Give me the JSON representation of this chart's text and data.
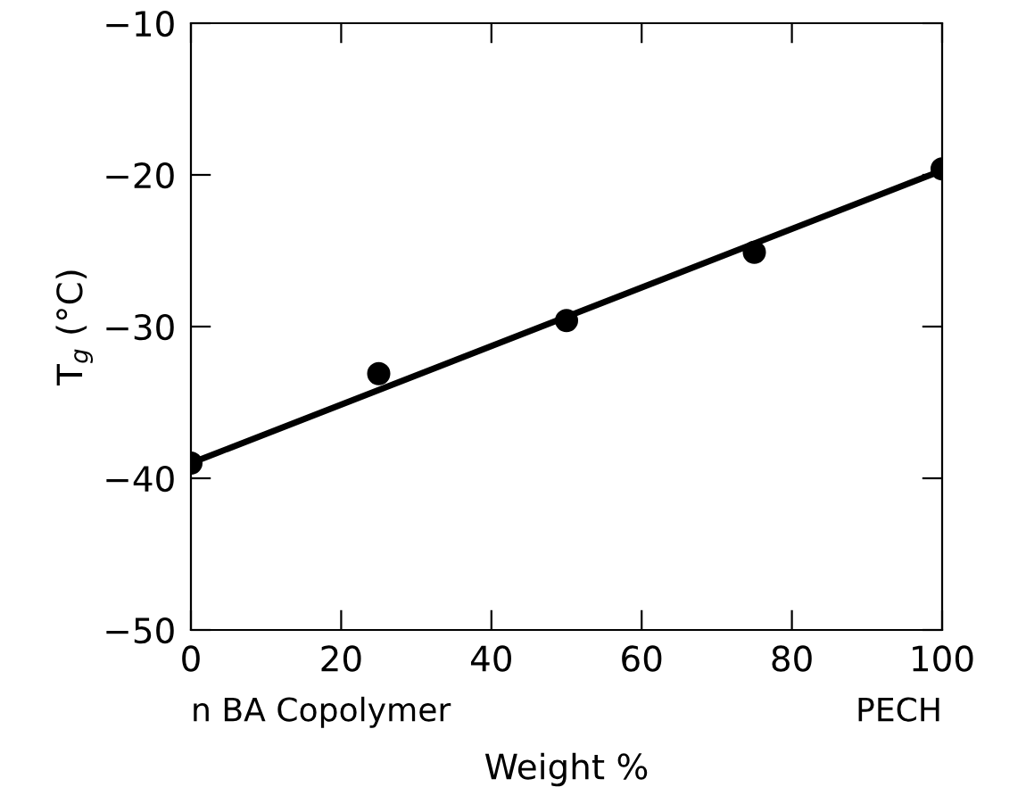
{
  "chart_data": {
    "type": "scatter",
    "xlabel": "Weight %",
    "ylabel": "T$_{g}$ (°C)",
    "x": [
      0,
      25,
      50,
      75,
      100
    ],
    "series": [
      {
        "color": "#000000",
        "marker": "circle",
        "values": [
          -39.0,
          -33.1,
          -29.6,
          -25.1,
          -19.6
        ]
      },
      {
        "type": "line",
        "color": "#000000",
        "x": [
          0,
          100
        ],
        "values": [
          -39.0,
          -19.7
        ],
        "line_style": "solid",
        "marker": "none"
      }
    ],
    "annotations": [
      "n BA Copolymer",
      "PECH"
    ],
    "xlim": [
      0,
      100
    ],
    "ylim": [
      -50,
      -10
    ],
    "xticks": [
      0,
      20,
      40,
      60,
      80,
      100
    ],
    "yticks": [
      -50,
      -40,
      -30,
      -20,
      -10
    ],
    "grid": false,
    "legend": false
  }
}
